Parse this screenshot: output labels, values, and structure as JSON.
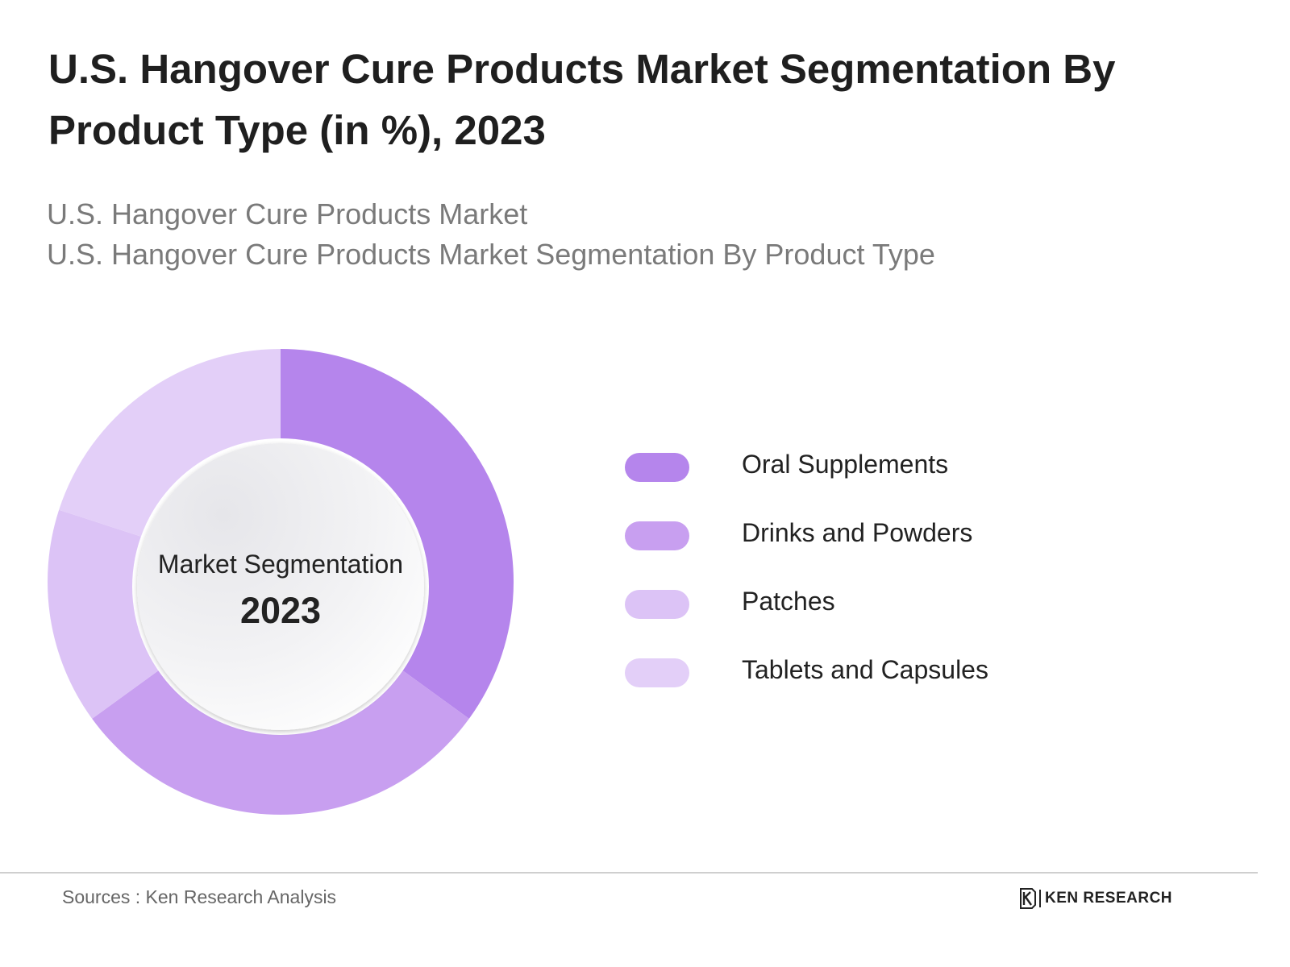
{
  "header": {
    "title": "U.S. Hangover Cure Products Market Segmentation By Product Type (in %), 2023",
    "subtitle_1": "U.S. Hangover Cure Products Market",
    "subtitle_2": "U.S. Hangover Cure Products Market Segmentation By Product Type"
  },
  "center": {
    "label": "Market Segmentation",
    "year": "2023"
  },
  "chart_data": {
    "type": "pie",
    "categories": [
      "Oral Supplements",
      "Drinks and Powders",
      "Patches",
      "Tablets and Capsules"
    ],
    "values": [
      35,
      30,
      15,
      20
    ],
    "colors": [
      "#b585ec",
      "#c89ff0",
      "#dcc3f6",
      "#e3cff8"
    ],
    "legend_position": "right"
  },
  "footer": {
    "source": "Sources : Ken Research Analysis",
    "brand": "KEN RESEARCH"
  }
}
